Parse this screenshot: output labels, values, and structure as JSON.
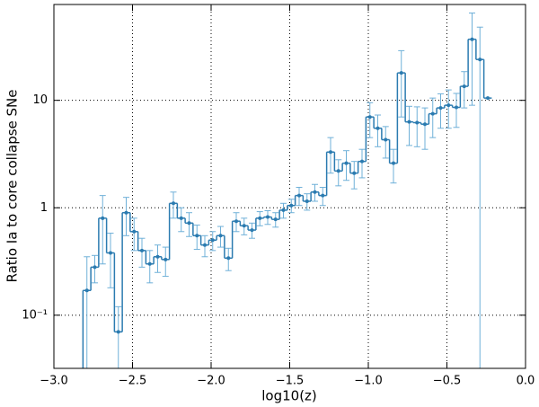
{
  "chart_data": {
    "type": "step-errorbar",
    "xlabel": "log10(z)",
    "ylabel": "Ratio Ia to core collapse SNe",
    "x": [
      -2.79,
      -2.74,
      -2.69,
      -2.64,
      -2.59,
      -2.54,
      -2.49,
      -2.44,
      -2.39,
      -2.34,
      -2.29,
      -2.24,
      -2.19,
      -2.14,
      -2.09,
      -2.04,
      -1.99,
      -1.94,
      -1.89,
      -1.84,
      -1.79,
      -1.74,
      -1.69,
      -1.64,
      -1.59,
      -1.54,
      -1.49,
      -1.44,
      -1.39,
      -1.34,
      -1.29,
      -1.24,
      -1.19,
      -1.14,
      -1.09,
      -1.04,
      -0.99,
      -0.94,
      -0.89,
      -0.84,
      -0.79,
      -0.74,
      -0.69,
      -0.64,
      -0.59,
      -0.54,
      -0.49,
      -0.44,
      -0.39,
      -0.34,
      -0.29,
      -0.24
    ],
    "values": [
      0.17,
      0.28,
      0.8,
      0.38,
      0.07,
      0.9,
      0.6,
      0.4,
      0.3,
      0.35,
      0.33,
      1.1,
      0.8,
      0.72,
      0.55,
      0.45,
      0.5,
      0.55,
      0.34,
      0.75,
      0.68,
      0.62,
      0.8,
      0.82,
      0.78,
      0.95,
      1.05,
      1.3,
      1.15,
      1.4,
      1.3,
      3.3,
      2.2,
      2.6,
      2.1,
      2.7,
      7.0,
      5.5,
      4.3,
      2.6,
      18,
      6.3,
      6.2,
      6.0,
      7.5,
      8.5,
      9.0,
      8.6,
      13.5,
      37,
      24,
      10.5
    ],
    "errors": [
      0.18,
      0.08,
      0.5,
      0.2,
      0.05,
      0.35,
      0.2,
      0.12,
      0.1,
      0.1,
      0.1,
      0.3,
      0.2,
      0.18,
      0.14,
      0.1,
      0.1,
      0.12,
      0.08,
      0.15,
      0.12,
      0.1,
      0.12,
      0.12,
      0.12,
      0.15,
      0.15,
      0.25,
      0.2,
      0.25,
      0.25,
      1.2,
      0.6,
      0.8,
      0.6,
      0.8,
      2.5,
      1.8,
      1.4,
      0.9,
      11,
      2.5,
      2.5,
      2.5,
      3,
      3,
      3.5,
      3,
      5,
      28,
      24,
      null
    ],
    "color": "#2b7bb0",
    "error_color": "#6fb0d8",
    "xlim": [
      -3.0,
      0.0
    ],
    "xticks": [
      {
        "value": -3.0,
        "label": "−3.0"
      },
      {
        "value": -2.5,
        "label": "−2.5"
      },
      {
        "value": -2.0,
        "label": "−2.0"
      },
      {
        "value": -1.5,
        "label": "−1.5"
      },
      {
        "value": -1.0,
        "label": "−1.0"
      },
      {
        "value": -0.5,
        "label": "−0.5"
      },
      {
        "value": 0.0,
        "label": "0.0"
      }
    ],
    "ylim": [
      0.032,
      78
    ],
    "yscale": "log",
    "yticks": [
      {
        "value": 0.1,
        "label": "10⁻¹"
      },
      1,
      10
    ],
    "grid": true
  }
}
